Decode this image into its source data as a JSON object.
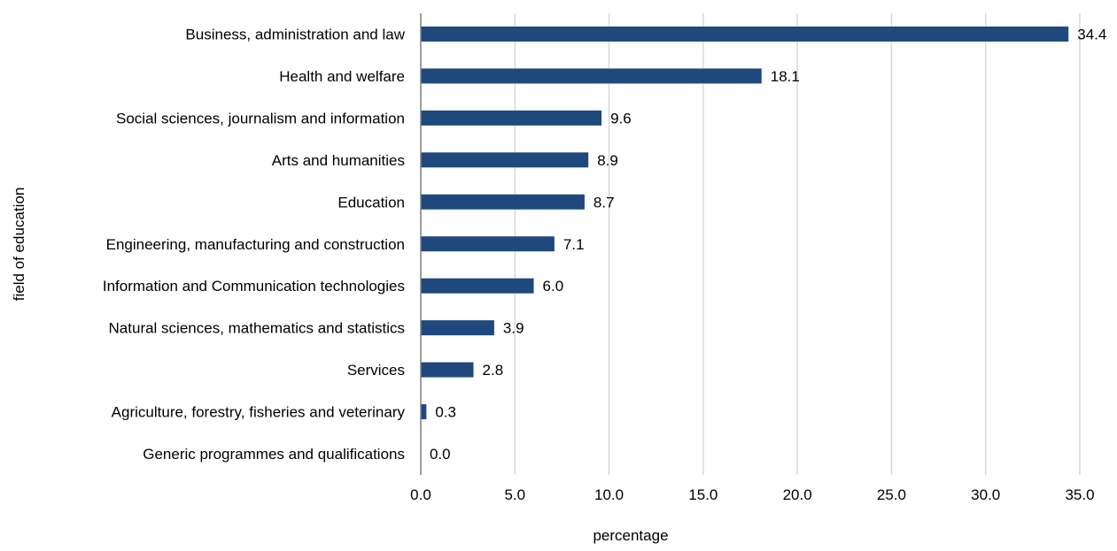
{
  "chart_data": {
    "type": "bar",
    "orientation": "horizontal",
    "categories": [
      "Business, administration and law",
      "Health and welfare",
      "Social sciences, journalism and information",
      "Arts and humanities",
      "Education",
      "Engineering, manufacturing and construction",
      "Information and Communication technologies",
      "Natural sciences, mathematics and statistics",
      "Services",
      "Agriculture, forestry, fisheries and veterinary",
      "Generic programmes and qualifications"
    ],
    "values": [
      34.4,
      18.1,
      9.6,
      8.9,
      8.7,
      7.1,
      6.0,
      3.9,
      2.8,
      0.3,
      0.0
    ],
    "data_labels": [
      "34.4",
      "18.1",
      "9.6",
      "8.9",
      "8.7",
      "7.1",
      "6.0",
      "3.9",
      "2.8",
      "0.3",
      "0.0"
    ],
    "xlabel": "percentage",
    "ylabel": "field of education",
    "xlim": [
      0,
      35
    ],
    "xticks": [
      0,
      5,
      10,
      15,
      20,
      25,
      30,
      35
    ],
    "xtick_labels": [
      "0.0",
      "5.0",
      "10.0",
      "15.0",
      "20.0",
      "25.0",
      "30.0",
      "35.0"
    ],
    "grid": "vertical",
    "legend": "none",
    "colors": {
      "bar": "#1f497d",
      "grid": "#d9d9d9",
      "axis": "#7f7f7f",
      "text": "#000000"
    }
  }
}
